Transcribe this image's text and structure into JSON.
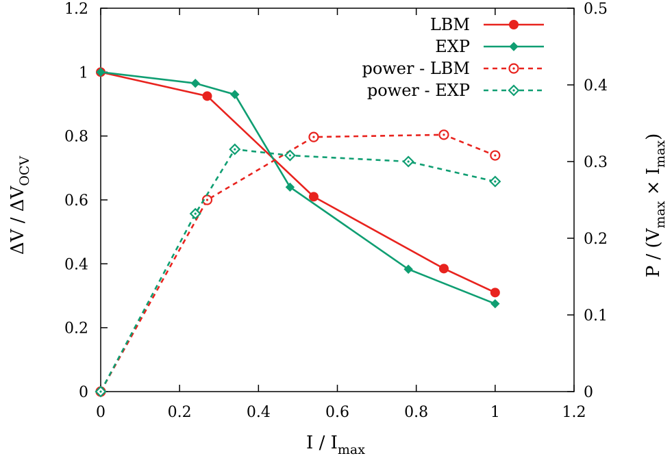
{
  "chart_data": {
    "type": "line",
    "xlabel": "I / I",
    "xlabel_sub": "max",
    "ylabel_left": "ΔV / ΔV",
    "ylabel_left_sub": "OCV",
    "ylabel_right": "P / (V",
    "ylabel_right_sub1": "max",
    "ylabel_right_mid": " × I",
    "ylabel_right_sub2": "max",
    "ylabel_right_end": ")",
    "xlim": [
      0,
      1.2
    ],
    "ylim_left": [
      0,
      1.2
    ],
    "ylim_right": [
      0,
      0.5
    ],
    "x_ticks": [
      "0",
      "0.2",
      "0.4",
      "0.6",
      "0.8",
      "1",
      "1.2"
    ],
    "y_left_ticks": [
      "0",
      "0.2",
      "0.4",
      "0.6",
      "0.8",
      "1",
      "1.2"
    ],
    "y_right_ticks": [
      "0",
      "0.1",
      "0.2",
      "0.3",
      "0.4",
      "0.5"
    ],
    "grid": false,
    "legend_position": "top-right",
    "series": [
      {
        "name": "LBM",
        "axis": "left",
        "color": "#e8231e",
        "style": "solid",
        "marker": "filled-circle",
        "x": [
          0,
          0.27,
          0.54,
          0.87,
          1.0
        ],
        "y": [
          1.0,
          0.925,
          0.61,
          0.385,
          0.31
        ]
      },
      {
        "name": "EXP",
        "axis": "left",
        "color": "#0f9e72",
        "style": "solid",
        "marker": "filled-diamond",
        "x": [
          0,
          0.24,
          0.34,
          0.48,
          0.78,
          1.0
        ],
        "y": [
          1.0,
          0.965,
          0.93,
          0.64,
          0.383,
          0.275
        ]
      },
      {
        "name": "power - LBM",
        "axis": "right",
        "color": "#e8231e",
        "style": "dashed",
        "marker": "open-circle",
        "x": [
          0,
          0.27,
          0.54,
          0.87,
          1.0
        ],
        "y": [
          0,
          0.25,
          0.332,
          0.335,
          0.308
        ]
      },
      {
        "name": "power - EXP",
        "axis": "right",
        "color": "#0f9e72",
        "style": "dashed",
        "marker": "open-diamond",
        "x": [
          0,
          0.24,
          0.34,
          0.48,
          0.78,
          1.0
        ],
        "y": [
          0,
          0.232,
          0.316,
          0.308,
          0.3,
          0.274
        ]
      }
    ]
  }
}
